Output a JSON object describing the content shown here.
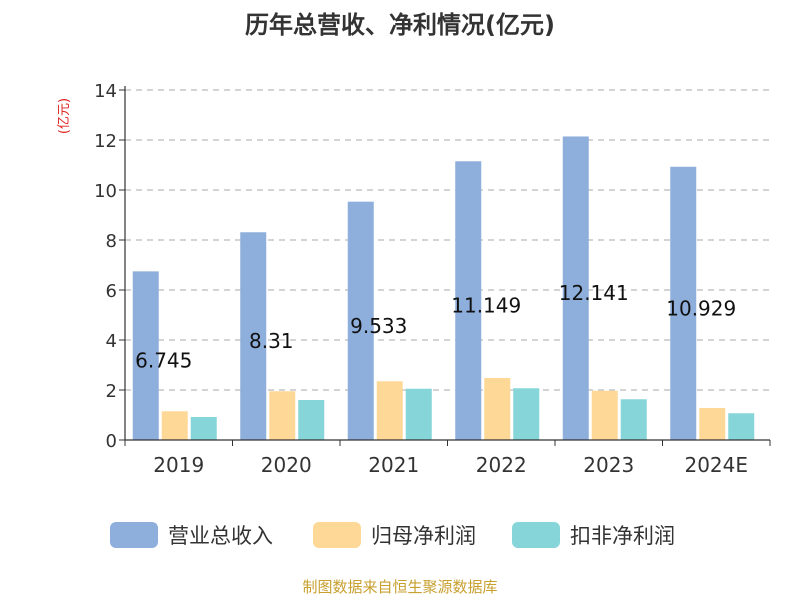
{
  "chart_data": {
    "type": "bar",
    "title": "历年总营收、净利情况(亿元)",
    "ylabel": "(亿元)",
    "xlabel": "",
    "categories": [
      "2019",
      "2020",
      "2021",
      "2022",
      "2023",
      "2024E"
    ],
    "yticks": [
      "0",
      "2",
      "4",
      "6",
      "8",
      "10",
      "12",
      "14"
    ],
    "ylim": [
      0,
      14
    ],
    "grid": true,
    "legend_position": "bottom",
    "series": [
      {
        "name": "营业总收入",
        "color": "#8eaedb",
        "values": [
          6.745,
          8.31,
          9.533,
          11.149,
          12.141,
          10.929
        ],
        "labels": [
          "6.745",
          "8.31",
          "9.533",
          "11.149",
          "12.141",
          "10.929"
        ]
      },
      {
        "name": "归母净利润",
        "color": "#fdd897",
        "values": [
          1.15,
          1.95,
          2.35,
          2.48,
          1.97,
          1.28
        ]
      },
      {
        "name": "扣非净利润",
        "color": "#86d5d8",
        "values": [
          0.92,
          1.6,
          2.05,
          2.07,
          1.63,
          1.07
        ]
      }
    ]
  },
  "source": "制图数据来自恒生聚源数据库"
}
